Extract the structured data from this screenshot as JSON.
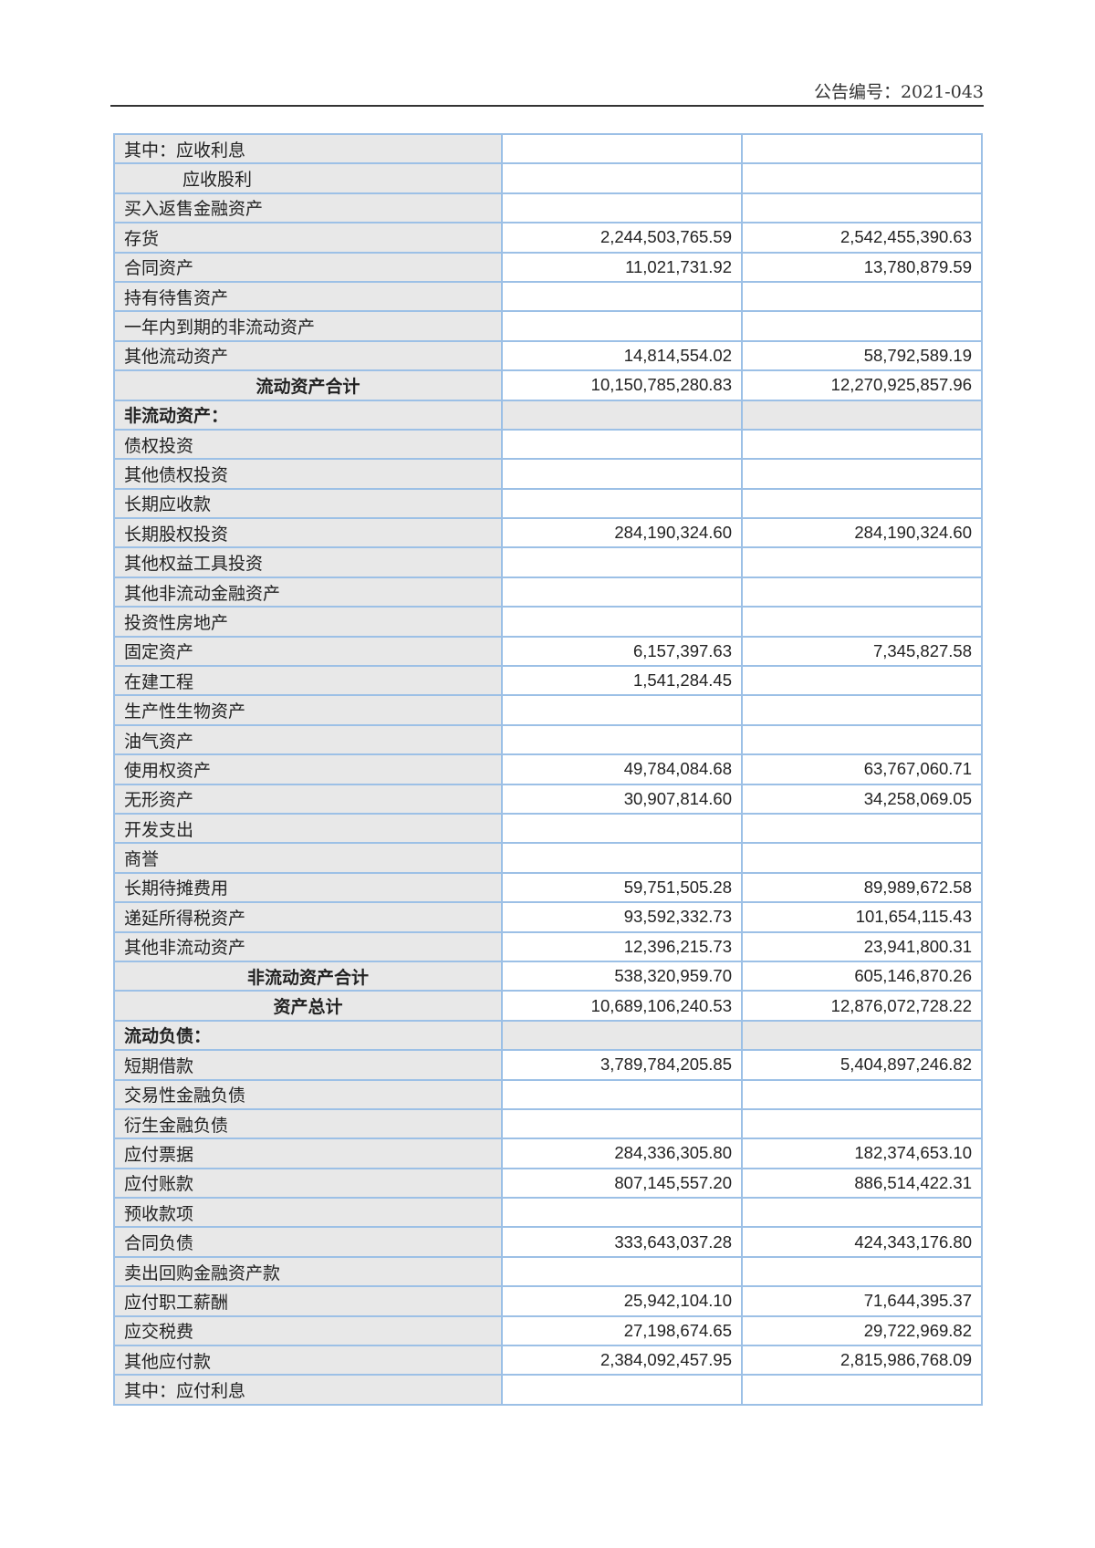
{
  "header": {
    "announcement_no": "公告编号：2021-043"
  },
  "rows": [
    {
      "label": "其中：应收利息",
      "a": "",
      "b": ""
    },
    {
      "label": "应收股利",
      "a": "",
      "b": "",
      "indent": true
    },
    {
      "label": "买入返售金融资产",
      "a": "",
      "b": ""
    },
    {
      "label": "存货",
      "a": "2,244,503,765.59",
      "b": "2,542,455,390.63"
    },
    {
      "label": "合同资产",
      "a": "11,021,731.92",
      "b": "13,780,879.59"
    },
    {
      "label": "持有待售资产",
      "a": "",
      "b": ""
    },
    {
      "label": "一年内到期的非流动资产",
      "a": "",
      "b": ""
    },
    {
      "label": "其他流动资产",
      "a": "14,814,554.02",
      "b": "58,792,589.19"
    },
    {
      "label": "流动资产合计",
      "a": "10,150,785,280.83",
      "b": "12,270,925,857.96",
      "type": "total"
    },
    {
      "label": "非流动资产：",
      "a": "",
      "b": "",
      "type": "section"
    },
    {
      "label": "债权投资",
      "a": "",
      "b": ""
    },
    {
      "label": "其他债权投资",
      "a": "",
      "b": ""
    },
    {
      "label": "长期应收款",
      "a": "",
      "b": ""
    },
    {
      "label": "长期股权投资",
      "a": "284,190,324.60",
      "b": "284,190,324.60"
    },
    {
      "label": "其他权益工具投资",
      "a": "",
      "b": ""
    },
    {
      "label": "其他非流动金融资产",
      "a": "",
      "b": ""
    },
    {
      "label": "投资性房地产",
      "a": "",
      "b": ""
    },
    {
      "label": "固定资产",
      "a": "6,157,397.63",
      "b": "7,345,827.58"
    },
    {
      "label": "在建工程",
      "a": "1,541,284.45",
      "b": ""
    },
    {
      "label": "生产性生物资产",
      "a": "",
      "b": ""
    },
    {
      "label": "油气资产",
      "a": "",
      "b": ""
    },
    {
      "label": "使用权资产",
      "a": "49,784,084.68",
      "b": "63,767,060.71"
    },
    {
      "label": "无形资产",
      "a": "30,907,814.60",
      "b": "34,258,069.05"
    },
    {
      "label": "开发支出",
      "a": "",
      "b": ""
    },
    {
      "label": "商誉",
      "a": "",
      "b": ""
    },
    {
      "label": "长期待摊费用",
      "a": "59,751,505.28",
      "b": "89,989,672.58"
    },
    {
      "label": "递延所得税资产",
      "a": "93,592,332.73",
      "b": "101,654,115.43"
    },
    {
      "label": "其他非流动资产",
      "a": "12,396,215.73",
      "b": "23,941,800.31"
    },
    {
      "label": "非流动资产合计",
      "a": "538,320,959.70",
      "b": "605,146,870.26",
      "type": "total"
    },
    {
      "label": "资产总计",
      "a": "10,689,106,240.53",
      "b": "12,876,072,728.22",
      "type": "total"
    },
    {
      "label": "流动负债：",
      "a": "",
      "b": "",
      "type": "section"
    },
    {
      "label": "短期借款",
      "a": "3,789,784,205.85",
      "b": "5,404,897,246.82"
    },
    {
      "label": "交易性金融负债",
      "a": "",
      "b": ""
    },
    {
      "label": "衍生金融负债",
      "a": "",
      "b": ""
    },
    {
      "label": "应付票据",
      "a": "284,336,305.80",
      "b": "182,374,653.10"
    },
    {
      "label": "应付账款",
      "a": "807,145,557.20",
      "b": "886,514,422.31"
    },
    {
      "label": "预收款项",
      "a": "",
      "b": ""
    },
    {
      "label": "合同负债",
      "a": "333,643,037.28",
      "b": "424,343,176.80"
    },
    {
      "label": "卖出回购金融资产款",
      "a": "",
      "b": ""
    },
    {
      "label": "应付职工薪酬",
      "a": "25,942,104.10",
      "b": "71,644,395.37"
    },
    {
      "label": "应交税费",
      "a": "27,198,674.65",
      "b": "29,722,969.82"
    },
    {
      "label": "其他应付款",
      "a": "2,384,092,457.95",
      "b": "2,815,986,768.09"
    },
    {
      "label": "其中：应付利息",
      "a": "",
      "b": ""
    }
  ]
}
